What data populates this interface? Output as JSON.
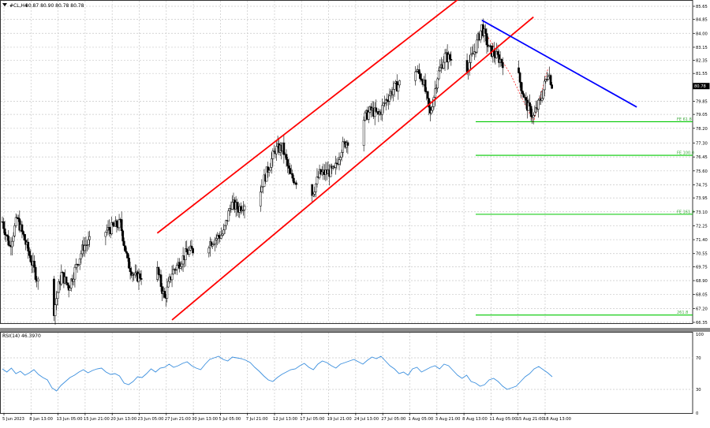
{
  "header": {
    "symbol": "#CL,H4",
    "ohlc": "80.87 80.90 80.78 80.78"
  },
  "price_axis": {
    "ticks": [
      "85.65",
      "84.85",
      "84.00",
      "83.15",
      "82.35",
      "81.55",
      "79.85",
      "79.05",
      "78.20",
      "77.30",
      "76.45",
      "75.60",
      "74.75",
      "73.95",
      "73.10",
      "72.25",
      "71.40",
      "70.55",
      "69.75",
      "68.90",
      "68.05",
      "67.20",
      "66.35"
    ],
    "current_price": "80.78"
  },
  "time_axis": {
    "ticks": [
      "5 Jun 2023",
      "8 Jun 13:00",
      "13 Jun 05:00",
      "15 Jun 21:00",
      "20 Jun 13:00",
      "23 Jun 05:00",
      "27 Jun 21:00",
      "30 Jun 13:00",
      "5 Jul 05:00",
      "7 Jul 21:00",
      "12 Jul 13:00",
      "17 Jul 05:00",
      "19 Jul 21:00",
      "24 Jul 13:00",
      "27 Jul 05:00",
      "1 Aug 05:00",
      "3 Aug 21:00",
      "8 Aug 13:00",
      "11 Aug 05:00",
      "15 Aug 21:00",
      "18 Aug 13:00"
    ]
  },
  "fib_levels": [
    {
      "label": "FE 61.8",
      "price": 78.6
    },
    {
      "label": "FE 100.0",
      "price": 76.55
    },
    {
      "label": "FE 161.8",
      "price": 72.95
    },
    {
      "label": "261.8",
      "price": 66.8
    }
  ],
  "rsi": {
    "label": "RSI(14) 46.3970",
    "axis_ticks": [
      "100",
      "70",
      "30",
      "0"
    ],
    "color": "#3b8fde"
  },
  "colors": {
    "bull": "#ffffff",
    "bear": "#000000",
    "channel": "#ff0000",
    "trendline": "#0000ff",
    "fib": "#00c800",
    "fib_text": "#3aa83a",
    "grid": "#c8c8c8"
  },
  "chart_data": [
    {
      "type": "candlestick",
      "title": "#CL,H4",
      "y_range": [
        66.35,
        85.65
      ],
      "x_range": [
        "2023-06-05",
        "2023-08-18 13:00"
      ],
      "anchor_path": [
        {
          "date": "2023-06-05",
          "price": 72.5
        },
        {
          "date": "2023-06-06",
          "price": 71.0
        },
        {
          "date": "2023-06-07",
          "price": 72.7
        },
        {
          "date": "2023-06-08",
          "price": 71.4
        },
        {
          "date": "2023-06-10",
          "price": 68.6
        },
        {
          "date": "2023-06-12",
          "price": 67.1
        },
        {
          "date": "2023-06-13",
          "price": 69.3
        },
        {
          "date": "2023-06-14",
          "price": 68.5
        },
        {
          "date": "2023-06-16",
          "price": 71.0
        },
        {
          "date": "2023-06-19",
          "price": 71.9
        },
        {
          "date": "2023-06-21",
          "price": 72.4
        },
        {
          "date": "2023-06-22",
          "price": 70.0
        },
        {
          "date": "2023-06-23",
          "price": 69.1
        },
        {
          "date": "2023-06-26",
          "price": 69.5
        },
        {
          "date": "2023-06-27",
          "price": 67.8
        },
        {
          "date": "2023-06-28",
          "price": 69.4
        },
        {
          "date": "2023-06-30",
          "price": 70.6
        },
        {
          "date": "2023-07-03",
          "price": 71.2
        },
        {
          "date": "2023-07-05",
          "price": 71.8
        },
        {
          "date": "2023-07-06",
          "price": 73.6
        },
        {
          "date": "2023-07-07",
          "price": 73.3
        },
        {
          "date": "2023-07-10",
          "price": 74.5
        },
        {
          "date": "2023-07-12",
          "price": 76.9
        },
        {
          "date": "2023-07-13",
          "price": 77.0
        },
        {
          "date": "2023-07-14",
          "price": 75.3
        },
        {
          "date": "2023-07-17",
          "price": 74.2
        },
        {
          "date": "2023-07-18",
          "price": 75.4
        },
        {
          "date": "2023-07-19",
          "price": 75.5
        },
        {
          "date": "2023-07-20",
          "price": 75.6
        },
        {
          "date": "2023-07-21",
          "price": 77.0
        },
        {
          "date": "2023-07-24",
          "price": 78.8
        },
        {
          "date": "2023-07-25",
          "price": 79.3
        },
        {
          "date": "2023-07-26",
          "price": 79.0
        },
        {
          "date": "2023-07-27",
          "price": 79.9
        },
        {
          "date": "2023-07-28",
          "price": 80.6
        },
        {
          "date": "2023-07-31",
          "price": 81.8
        },
        {
          "date": "2023-08-01",
          "price": 81.2
        },
        {
          "date": "2023-08-02",
          "price": 79.0
        },
        {
          "date": "2023-08-03",
          "price": 81.4
        },
        {
          "date": "2023-08-04",
          "price": 82.6
        },
        {
          "date": "2023-08-07",
          "price": 81.9
        },
        {
          "date": "2023-08-08",
          "price": 82.9
        },
        {
          "date": "2023-08-09",
          "price": 84.4
        },
        {
          "date": "2023-08-10",
          "price": 83.0
        },
        {
          "date": "2023-08-11",
          "price": 82.6
        },
        {
          "date": "2023-08-14",
          "price": 81.3
        },
        {
          "date": "2023-08-15",
          "price": 79.7
        },
        {
          "date": "2023-08-16",
          "price": 78.9
        },
        {
          "date": "2023-08-17",
          "price": 80.0
        },
        {
          "date": "2023-08-18",
          "price": 81.7
        },
        {
          "date": "2023-08-18 13:00",
          "price": 80.78
        }
      ],
      "channel_upper": [
        {
          "date": "2023-06-26",
          "price": 71.8
        },
        {
          "date": "2023-08-07",
          "price": 86.5
        }
      ],
      "channel_lower": [
        {
          "date": "2023-06-28",
          "price": 66.5
        },
        {
          "date": "2023-08-16",
          "price": 85.0
        }
      ],
      "trendline": [
        {
          "date": "2023-08-09",
          "price": 84.8
        },
        {
          "date": "2023-08-30",
          "price": 79.5
        }
      ]
    },
    {
      "type": "line",
      "title": "RSI(14) 46.3970",
      "y_range": [
        0,
        100
      ],
      "series": [
        {
          "values": [
            56,
            52,
            57,
            50,
            53,
            48,
            51,
            55,
            49,
            45,
            42,
            32,
            28,
            35,
            40,
            45,
            48,
            52,
            55,
            51,
            54,
            56,
            57,
            52,
            49,
            50,
            47,
            38,
            36,
            40,
            46,
            45,
            50,
            56,
            52,
            57,
            58,
            62,
            58,
            60,
            63,
            65,
            60,
            57,
            55,
            62,
            68,
            70,
            72,
            68,
            66,
            71,
            70,
            69,
            67,
            64,
            58,
            53,
            47,
            42,
            40,
            45,
            49,
            52,
            55,
            56,
            60,
            63,
            58,
            55,
            62,
            66,
            64,
            60,
            57,
            62,
            64,
            66,
            68,
            65,
            62,
            67,
            71,
            69,
            72,
            66,
            60,
            56,
            50,
            52,
            48,
            56,
            58,
            52,
            55,
            58,
            60,
            56,
            62,
            60,
            54,
            48,
            44,
            48,
            40,
            38,
            34,
            36,
            42,
            44,
            40,
            34,
            30,
            32,
            34,
            40,
            46,
            50,
            56,
            59,
            55,
            51,
            46
          ]
        }
      ]
    }
  ]
}
